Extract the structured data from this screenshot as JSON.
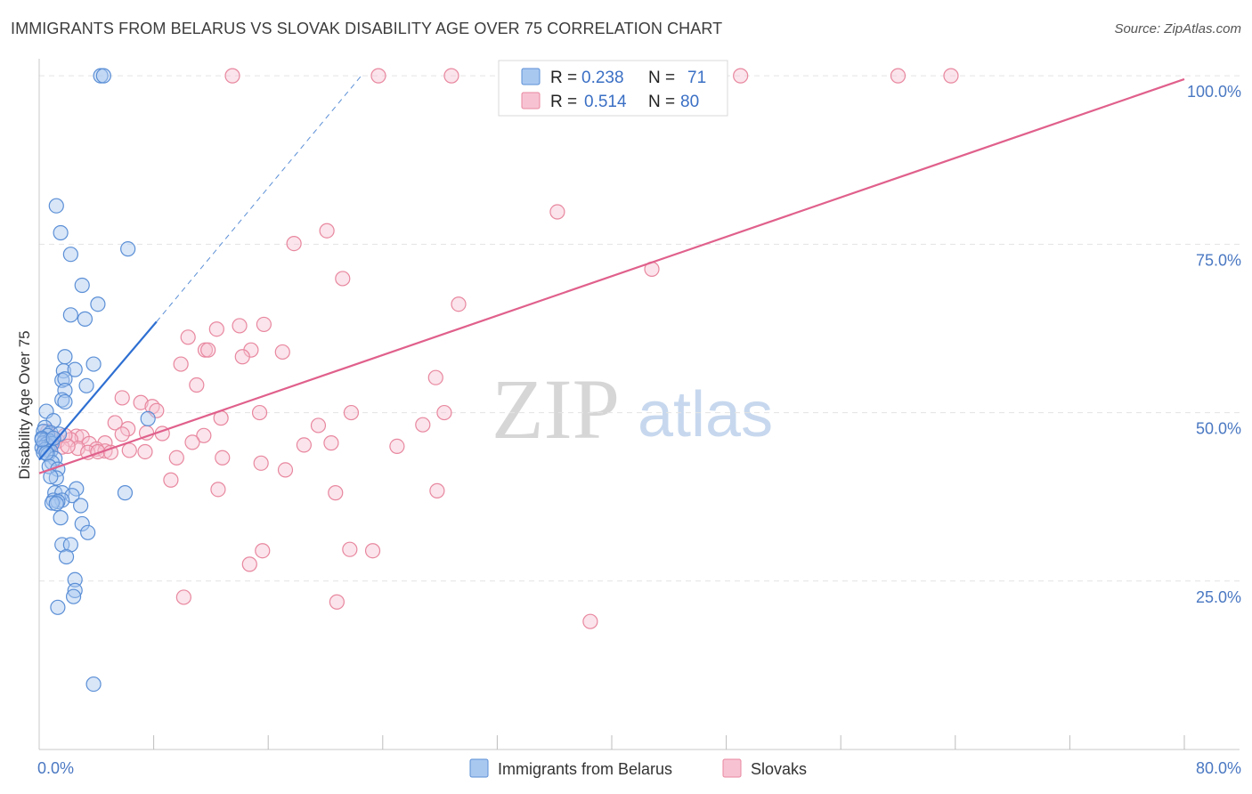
{
  "header": {
    "title": "IMMIGRANTS FROM BELARUS VS SLOVAK DISABILITY AGE OVER 75 CORRELATION CHART",
    "source": "Source: ZipAtlas.com"
  },
  "watermark": {
    "zip": "ZIP",
    "atlas": "atlas"
  },
  "colors": {
    "belarus_fill": "#a9c8f0",
    "belarus_stroke": "#5b8fd6",
    "belarus_line": "#2e6fd2",
    "slovak_fill": "#f7c3d3",
    "slovak_stroke": "#e8879f",
    "slovak_line": "#e0608c",
    "grid": "#e3e3e3",
    "tick_label": "#4a78c2"
  },
  "legend": {
    "r_label": "R =",
    "n_label": "N =",
    "belarus": {
      "r": "0.238",
      "n": "71"
    },
    "slovak": {
      "r": "0.514",
      "n": "80"
    }
  },
  "chart_data": {
    "type": "scatter",
    "title": "IMMIGRANTS FROM BELARUS VS SLOVAK DISABILITY AGE OVER 75 CORRELATION CHART",
    "xlabel": "",
    "ylabel": "Disability Age Over 75",
    "xlim": [
      0,
      80
    ],
    "ylim": [
      0,
      102
    ],
    "x_tick_labels": {
      "min": "0.0%",
      "max": "80.0%"
    },
    "y_ticks": [
      {
        "value": 25,
        "label": "25.0%"
      },
      {
        "value": 50,
        "label": "50.0%"
      },
      {
        "value": 75,
        "label": "75.0%"
      },
      {
        "value": 100,
        "label": "100.0%"
      }
    ],
    "series": [
      {
        "name": "Immigrants from Belarus",
        "r": 0.238,
        "n": 71,
        "trend": {
          "x0": 0.0,
          "y0": 43.0,
          "x1": 8.2,
          "y1": 63.5,
          "dash_to_x": 22.5,
          "dash_to_y": 100.0
        },
        "points": [
          [
            4.3,
            100
          ],
          [
            4.5,
            100
          ],
          [
            1.2,
            80.7
          ],
          [
            1.5,
            76.7
          ],
          [
            2.2,
            73.5
          ],
          [
            6.2,
            74.3
          ],
          [
            3.0,
            68.9
          ],
          [
            4.1,
            66.1
          ],
          [
            2.2,
            64.5
          ],
          [
            3.2,
            63.9
          ],
          [
            1.8,
            58.3
          ],
          [
            3.8,
            57.2
          ],
          [
            1.7,
            56.2
          ],
          [
            2.5,
            56.4
          ],
          [
            1.6,
            54.8
          ],
          [
            1.8,
            55.0
          ],
          [
            3.3,
            54.0
          ],
          [
            1.8,
            53.3
          ],
          [
            1.6,
            51.9
          ],
          [
            1.8,
            51.6
          ],
          [
            0.5,
            50.2
          ],
          [
            7.6,
            49.1
          ],
          [
            1.0,
            48.8
          ],
          [
            0.4,
            47.8
          ],
          [
            0.3,
            47.2
          ],
          [
            0.8,
            47.0
          ],
          [
            1.4,
            46.8
          ],
          [
            0.6,
            46.6
          ],
          [
            0.2,
            46.2
          ],
          [
            0.4,
            45.9
          ],
          [
            0.7,
            45.8
          ],
          [
            0.3,
            45.5
          ],
          [
            0.5,
            45.3
          ],
          [
            0.6,
            45.0
          ],
          [
            0.9,
            45.4
          ],
          [
            0.2,
            44.8
          ],
          [
            0.4,
            44.5
          ],
          [
            0.8,
            44.3
          ],
          [
            0.3,
            44.1
          ],
          [
            0.6,
            43.8
          ],
          [
            1.1,
            43.2
          ],
          [
            0.9,
            42.6
          ],
          [
            0.7,
            42.0
          ],
          [
            1.3,
            41.6
          ],
          [
            1.2,
            40.3
          ],
          [
            0.8,
            40.5
          ],
          [
            2.6,
            38.7
          ],
          [
            6.0,
            38.1
          ],
          [
            1.1,
            38.1
          ],
          [
            1.6,
            38.1
          ],
          [
            2.3,
            37.7
          ],
          [
            1.0,
            37.0
          ],
          [
            1.6,
            37.0
          ],
          [
            1.3,
            36.8
          ],
          [
            0.9,
            36.6
          ],
          [
            1.2,
            36.5
          ],
          [
            2.9,
            36.2
          ],
          [
            1.5,
            34.4
          ],
          [
            3.0,
            33.5
          ],
          [
            3.4,
            32.2
          ],
          [
            1.6,
            30.4
          ],
          [
            2.2,
            30.4
          ],
          [
            1.9,
            28.6
          ],
          [
            2.5,
            25.2
          ],
          [
            2.5,
            23.6
          ],
          [
            2.4,
            22.7
          ],
          [
            1.3,
            21.1
          ],
          [
            3.8,
            9.7
          ],
          [
            0.2,
            46.0
          ],
          [
            0.5,
            44.0
          ],
          [
            1.0,
            46.2
          ]
        ]
      },
      {
        "name": "Slovaks",
        "r": 0.514,
        "n": 80,
        "trend": {
          "x0": 0.0,
          "y0": 41.0,
          "x1": 80.0,
          "y1": 99.5
        },
        "points": [
          [
            13.5,
            100
          ],
          [
            23.7,
            100
          ],
          [
            28.8,
            100
          ],
          [
            49.0,
            100
          ],
          [
            60.0,
            100
          ],
          [
            63.7,
            100
          ],
          [
            36.2,
            79.8
          ],
          [
            20.1,
            77.0
          ],
          [
            17.8,
            75.1
          ],
          [
            42.8,
            71.3
          ],
          [
            21.2,
            69.9
          ],
          [
            29.3,
            66.1
          ],
          [
            14.0,
            62.9
          ],
          [
            15.7,
            63.1
          ],
          [
            12.4,
            62.4
          ],
          [
            10.4,
            61.2
          ],
          [
            11.6,
            59.3
          ],
          [
            11.8,
            59.3
          ],
          [
            14.8,
            59.3
          ],
          [
            17.0,
            59.0
          ],
          [
            14.2,
            58.3
          ],
          [
            9.9,
            57.2
          ],
          [
            27.7,
            55.2
          ],
          [
            11.0,
            54.1
          ],
          [
            5.8,
            52.2
          ],
          [
            7.1,
            51.5
          ],
          [
            7.9,
            50.9
          ],
          [
            8.2,
            50.3
          ],
          [
            15.4,
            50.0
          ],
          [
            21.8,
            50.0
          ],
          [
            28.3,
            50.0
          ],
          [
            12.7,
            49.2
          ],
          [
            5.3,
            48.5
          ],
          [
            19.5,
            48.1
          ],
          [
            26.8,
            48.2
          ],
          [
            6.2,
            47.6
          ],
          [
            7.5,
            47.0
          ],
          [
            8.6,
            46.9
          ],
          [
            5.8,
            46.8
          ],
          [
            11.5,
            46.6
          ],
          [
            2.6,
            46.5
          ],
          [
            3.0,
            46.4
          ],
          [
            2.2,
            46.0
          ],
          [
            1.3,
            45.8
          ],
          [
            10.7,
            45.6
          ],
          [
            3.5,
            45.4
          ],
          [
            4.6,
            45.5
          ],
          [
            20.4,
            45.5
          ],
          [
            18.5,
            45.2
          ],
          [
            25.0,
            45.0
          ],
          [
            1.6,
            44.9
          ],
          [
            2.7,
            44.7
          ],
          [
            4.0,
            44.6
          ],
          [
            4.6,
            44.3
          ],
          [
            3.4,
            44.1
          ],
          [
            4.1,
            44.2
          ],
          [
            5.0,
            44.1
          ],
          [
            6.3,
            44.4
          ],
          [
            7.4,
            44.2
          ],
          [
            9.6,
            43.3
          ],
          [
            12.8,
            43.3
          ],
          [
            15.5,
            42.5
          ],
          [
            17.2,
            41.5
          ],
          [
            9.2,
            40.0
          ],
          [
            12.5,
            38.6
          ],
          [
            20.7,
            38.1
          ],
          [
            27.8,
            38.4
          ],
          [
            15.6,
            29.5
          ],
          [
            21.7,
            29.7
          ],
          [
            14.7,
            27.5
          ],
          [
            10.1,
            22.6
          ],
          [
            20.8,
            21.9
          ],
          [
            38.5,
            19.0
          ],
          [
            23.3,
            29.5
          ],
          [
            0.6,
            47.2
          ],
          [
            1.0,
            46.0
          ],
          [
            0.4,
            44.8
          ],
          [
            0.8,
            45.5
          ],
          [
            1.8,
            46.6
          ],
          [
            2.0,
            45.0
          ]
        ]
      }
    ]
  }
}
